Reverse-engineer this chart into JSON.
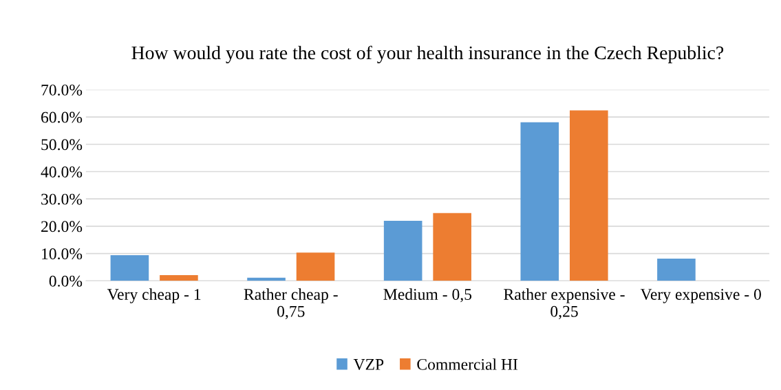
{
  "chart_data": {
    "type": "bar",
    "title": "How would you rate the cost of your health insurance in the Czech Republic?",
    "categories": [
      "Very cheap - 1",
      "Rather cheap - 0,75",
      "Medium - 0,5",
      "Rather expensive - 0,25",
      "Very expensive - 0"
    ],
    "series": [
      {
        "name": "VZP",
        "color": "#5b9bd5",
        "values": [
          9.4,
          1.1,
          22.0,
          58.1,
          8.1
        ]
      },
      {
        "name": "Commercial HI",
        "color": "#ed7d31",
        "values": [
          2.1,
          10.3,
          24.8,
          62.4,
          0
        ]
      }
    ],
    "ylim": [
      0,
      70
    ],
    "yticks": [
      {
        "value": 0,
        "label": "0.0%"
      },
      {
        "value": 10,
        "label": "10.0%"
      },
      {
        "value": 20,
        "label": "20.0%"
      },
      {
        "value": 30,
        "label": "30.0%"
      },
      {
        "value": 40,
        "label": "40.0%"
      },
      {
        "value": 50,
        "label": "50.0%"
      },
      {
        "value": 60,
        "label": "60.0%"
      },
      {
        "value": 70,
        "label": "70.0%"
      }
    ],
    "grid": "y",
    "legend": "bottom"
  }
}
